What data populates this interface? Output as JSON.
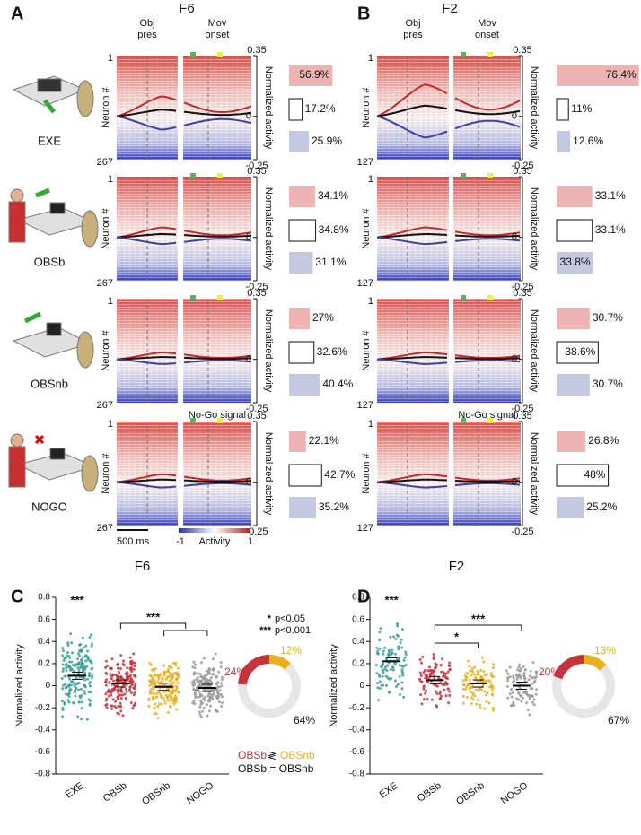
{
  "conditions": [
    "EXE",
    "OBSb",
    "OBSnb",
    "NOGO"
  ],
  "panels": [
    {
      "letter": "A",
      "title": "F6",
      "obj_label": [
        "Obj",
        "pres"
      ],
      "mov_label": [
        "Mov",
        "onset"
      ],
      "nogo_label": "No-Go signal",
      "neuron_label": "Neuron #",
      "neuron_first": "1",
      "neuron_last": "267",
      "ylabel": "Normalized activity",
      "yticks": [
        0.35,
        0,
        -0.25
      ],
      "ylim": [
        -0.25,
        0.35
      ],
      "rows": [
        {
          "values": [
            56.9,
            17.2,
            25.9
          ],
          "value_labels": [
            "56.9%",
            "17.2%",
            "25.9%"
          ]
        },
        {
          "values": [
            34.1,
            34.8,
            31.1
          ],
          "value_labels": [
            "34.1%",
            "34.8%",
            "31.1%"
          ]
        },
        {
          "values": [
            27,
            32.6,
            40.4
          ],
          "value_labels": [
            "27%",
            "32.6%",
            "40.4%"
          ]
        },
        {
          "values": [
            22.1,
            42.7,
            35.2
          ],
          "value_labels": [
            "22.1%",
            "42.7%",
            "35.2%"
          ]
        }
      ],
      "scale_label": "500 ms",
      "colorbar": {
        "min": "-1",
        "label": "Activity",
        "max": "1"
      }
    },
    {
      "letter": "B",
      "title": "F2",
      "obj_label": [
        "Obj",
        "pres"
      ],
      "mov_label": [
        "Mov",
        "onset"
      ],
      "nogo_label": "No-Go signal",
      "neuron_label": "Neuron #",
      "neuron_first": "1",
      "neuron_last": "127",
      "ylabel": "Normalized activity",
      "yticks": [
        0.35,
        0,
        -0.25
      ],
      "ylim": [
        -0.25,
        0.35
      ],
      "rows": [
        {
          "values": [
            76.4,
            11,
            12.6
          ],
          "value_labels": [
            "76.4%",
            "11%",
            "12.6%"
          ]
        },
        {
          "values": [
            33.1,
            33.1,
            33.8
          ],
          "value_labels": [
            "33.1%",
            "33.1%",
            "33.8%"
          ]
        },
        {
          "values": [
            30.7,
            38.6,
            30.7
          ],
          "value_labels": [
            "30.7%",
            "38.6%",
            "30.7%"
          ]
        },
        {
          "values": [
            26.8,
            48,
            25.2
          ],
          "value_labels": [
            "26.8%",
            "48%",
            "25.2%"
          ]
        }
      ]
    }
  ],
  "scatters": [
    {
      "letter": "C",
      "title": "F6",
      "ylabel": "Normalized activity",
      "ylim": [
        -0.8,
        0.8
      ],
      "yticks": [
        0.8,
        0.6,
        0.4,
        0.2,
        0,
        -0.2,
        -0.4,
        -0.6,
        -0.8
      ],
      "categories": [
        "EXE",
        "OBSb",
        "OBSnb",
        "NOGO"
      ],
      "colors": [
        "#3a9c9c",
        "#c8323c",
        "#e8b020",
        "#9a9a9a"
      ],
      "means": [
        0.09,
        0.02,
        -0.01,
        -0.02
      ],
      "exe_sig": "***",
      "brackets": [
        "***"
      ],
      "donut": {
        "values": [
          24,
          12,
          64
        ],
        "labels": [
          "24%",
          "12%",
          "64%"
        ],
        "colors": [
          "#c8323c",
          "#e8b020",
          "#e6e6e6"
        ]
      },
      "legend": {
        "sig": [
          [
            "*",
            "p<0.05"
          ],
          [
            "***",
            "p<0.001"
          ]
        ],
        "diff": [
          "OBSb",
          "≷",
          "OBSnb"
        ],
        "same": "OBSb = OBSnb"
      }
    },
    {
      "letter": "D",
      "title": "F2",
      "ylabel": "Normalized activity",
      "ylim": [
        -0.8,
        0.8
      ],
      "yticks": [
        0.8,
        0.6,
        0.4,
        0.2,
        0,
        -0.2,
        -0.4,
        -0.6,
        -0.8
      ],
      "categories": [
        "EXE",
        "OBSb",
        "OBSnb",
        "NOGO"
      ],
      "colors": [
        "#3a9c9c",
        "#c8323c",
        "#e8b020",
        "#9a9a9a"
      ],
      "means": [
        0.22,
        0.05,
        0.02,
        0
      ],
      "exe_sig": "***",
      "brackets": [
        "*",
        "***"
      ],
      "donut": {
        "values": [
          20,
          13,
          67
        ],
        "labels": [
          "20%",
          "13%",
          "67%"
        ],
        "colors": [
          "#c8323c",
          "#e8b020",
          "#e6e6e6"
        ]
      }
    }
  ]
}
